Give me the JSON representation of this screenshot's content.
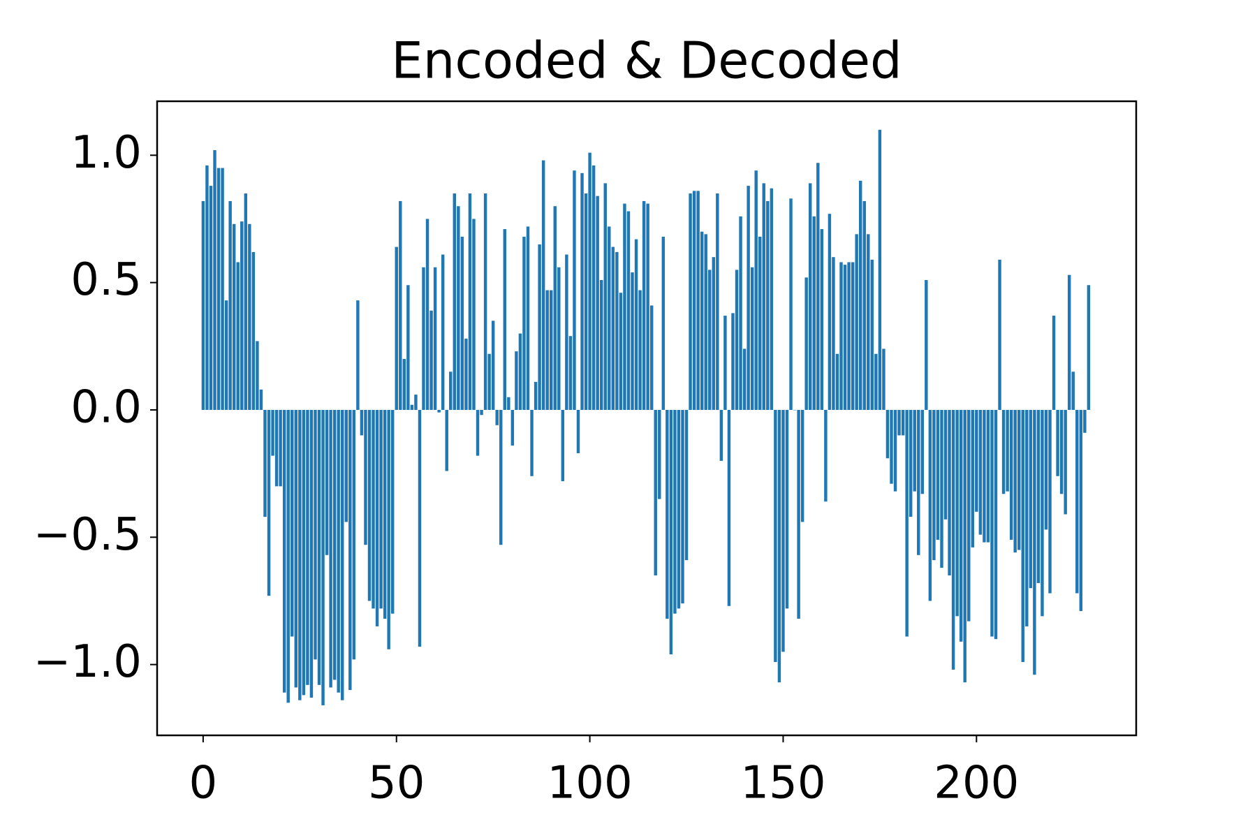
{
  "chart_data": {
    "type": "bar",
    "title": "Encoded & Decoded",
    "color": "#1f77b4",
    "bar_width": 0.8,
    "grid": false,
    "x": [
      0,
      1,
      2,
      3,
      4,
      5,
      6,
      7,
      8,
      9,
      10,
      11,
      12,
      13,
      14,
      15,
      16,
      17,
      18,
      19,
      20,
      21,
      22,
      23,
      24,
      25,
      26,
      27,
      28,
      29,
      30,
      31,
      32,
      33,
      34,
      35,
      36,
      37,
      38,
      39,
      40,
      41,
      42,
      43,
      44,
      45,
      46,
      47,
      48,
      49,
      50,
      51,
      52,
      53,
      54,
      55,
      56,
      57,
      58,
      59,
      60,
      61,
      62,
      63,
      64,
      65,
      66,
      67,
      68,
      69,
      70,
      71,
      72,
      73,
      74,
      75,
      76,
      77,
      78,
      79,
      80,
      81,
      82,
      83,
      84,
      85,
      86,
      87,
      88,
      89,
      90,
      91,
      92,
      93,
      94,
      95,
      96,
      97,
      98,
      99,
      100,
      101,
      102,
      103,
      104,
      105,
      106,
      107,
      108,
      109,
      110,
      111,
      112,
      113,
      114,
      115,
      116,
      117,
      118,
      119,
      120,
      121,
      122,
      123,
      124,
      125,
      126,
      127,
      128,
      129,
      130,
      131,
      132,
      133,
      134,
      135,
      136,
      137,
      138,
      139,
      140,
      141,
      142,
      143,
      144,
      145,
      146,
      147,
      148,
      149,
      150,
      151,
      152,
      153,
      154,
      155,
      156,
      157,
      158,
      159,
      160,
      161,
      162,
      163,
      164,
      165,
      166,
      167,
      168,
      169,
      170,
      171,
      172,
      173,
      174,
      175,
      176,
      177,
      178,
      179,
      180,
      181,
      182,
      183,
      184,
      185,
      186,
      187,
      188,
      189,
      190,
      191,
      192,
      193,
      194,
      195,
      196,
      197,
      198,
      199,
      200,
      201,
      202,
      203,
      204,
      205,
      206,
      207,
      208,
      209,
      210,
      211,
      212,
      213,
      214,
      215,
      216,
      217,
      218,
      219,
      220,
      221,
      222,
      223,
      224,
      225,
      226,
      227,
      228,
      229
    ],
    "values": [
      0.82,
      0.96,
      0.88,
      1.02,
      0.95,
      0.95,
      0.43,
      0.82,
      0.73,
      0.58,
      0.74,
      0.85,
      0.73,
      0.62,
      0.27,
      0.08,
      -0.42,
      -0.73,
      -0.18,
      -0.3,
      -0.3,
      -1.11,
      -1.15,
      -0.89,
      -1.09,
      -1.14,
      -1.12,
      -1.08,
      -1.13,
      -0.98,
      -1.08,
      -1.16,
      -0.57,
      -1.09,
      -1.06,
      -1.11,
      -1.14,
      -0.44,
      -1.1,
      -0.98,
      0.43,
      -0.1,
      -0.53,
      -0.75,
      -0.78,
      -0.85,
      -0.78,
      -0.82,
      -0.94,
      -0.8,
      0.64,
      0.82,
      0.2,
      0.49,
      0.02,
      0.06,
      -0.93,
      0.56,
      0.75,
      0.39,
      0.56,
      -0.01,
      0.61,
      -0.24,
      0.15,
      0.85,
      0.8,
      0.68,
      0.28,
      0.85,
      0.75,
      -0.18,
      -0.02,
      0.85,
      0.22,
      0.35,
      -0.06,
      -0.53,
      0.71,
      0.05,
      -0.14,
      0.23,
      0.3,
      0.68,
      0.72,
      -0.26,
      0.11,
      0.65,
      0.98,
      0.47,
      0.47,
      0.8,
      0.56,
      -0.28,
      0.61,
      0.29,
      0.94,
      -0.17,
      0.93,
      0.85,
      1.01,
      0.96,
      0.84,
      0.51,
      0.89,
      0.72,
      0.64,
      0.62,
      0.46,
      0.81,
      0.78,
      0.54,
      0.67,
      0.47,
      0.82,
      0.81,
      0.41,
      -0.65,
      -0.35,
      0.68,
      -0.82,
      -0.96,
      -0.8,
      -0.78,
      -0.76,
      -0.59,
      0.85,
      0.86,
      0.86,
      0.7,
      0.69,
      0.55,
      0.6,
      0.85,
      -0.2,
      0.37,
      -0.77,
      0.38,
      0.55,
      0.76,
      0.24,
      0.88,
      0.56,
      0.94,
      0.68,
      0.89,
      0.82,
      0.87,
      -0.99,
      -1.07,
      -0.95,
      -0.78,
      0.83,
      0.0,
      -0.82,
      -0.44,
      0.52,
      0.89,
      0.76,
      0.97,
      0.71,
      -0.36,
      0.77,
      0.6,
      0.22,
      0.58,
      0.57,
      0.58,
      0.58,
      0.69,
      0.9,
      0.82,
      0.69,
      0.59,
      0.22,
      1.1,
      0.24,
      -0.19,
      -0.29,
      -0.32,
      -0.1,
      -0.1,
      -0.89,
      -0.42,
      -0.32,
      -0.57,
      -0.33,
      0.51,
      -0.75,
      -0.59,
      -0.51,
      -0.62,
      -0.43,
      -0.65,
      -1.02,
      -0.81,
      -0.91,
      -1.07,
      -0.83,
      -0.54,
      -0.4,
      -0.49,
      -0.52,
      -0.52,
      -0.89,
      -0.9,
      0.59,
      -0.33,
      -0.32,
      -0.51,
      -0.56,
      -0.55,
      -0.99,
      -0.85,
      -0.7,
      -1.04,
      -0.68,
      -0.81,
      -0.47,
      -0.72,
      0.37,
      -0.26,
      -0.33,
      -0.41,
      0.53,
      0.15,
      -0.72,
      -0.79,
      -0.09,
      0.49
    ],
    "xlim": [
      -11.9,
      241.3
    ],
    "xticks": [
      0,
      50,
      100,
      150,
      200
    ],
    "ylim": [
      -1.278,
      1.212
    ],
    "yticks": [
      {
        "value": -1.0,
        "label": "−1.0"
      },
      {
        "value": -0.5,
        "label": "−0.5"
      },
      {
        "value": 0.0,
        "label": "0.0"
      },
      {
        "value": 0.5,
        "label": "0.5"
      },
      {
        "value": 1.0,
        "label": "1.0"
      }
    ]
  }
}
